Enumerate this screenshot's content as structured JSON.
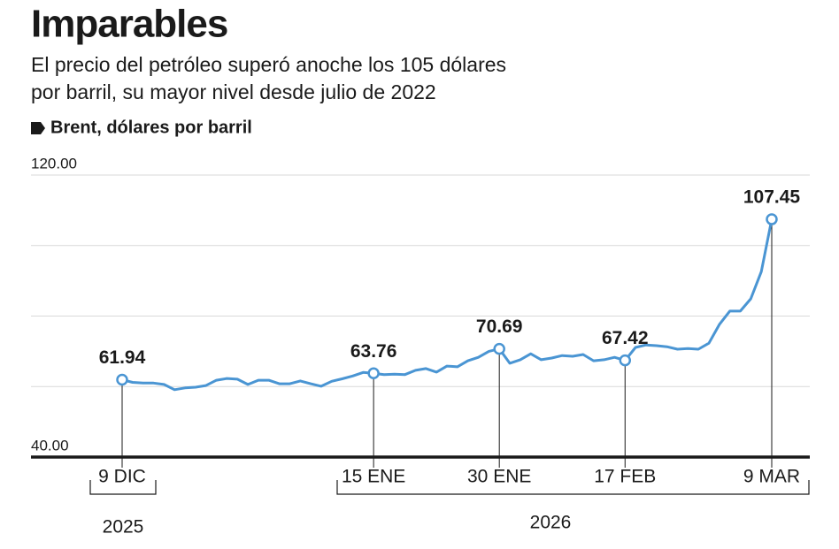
{
  "chart_data": {
    "type": "line",
    "title": "Imparables",
    "subtitle": [
      "El precio del petróleo superó anoche los 105 dólares",
      "por barril, su mayor nivel desde julio de 2022"
    ],
    "categories": [
      "9 DIC",
      null,
      null,
      null,
      null,
      null,
      null,
      null,
      null,
      null,
      null,
      null,
      null,
      null,
      null,
      null,
      null,
      null,
      null,
      null,
      null,
      null,
      null,
      null,
      "15 ENE",
      null,
      null,
      null,
      null,
      null,
      null,
      null,
      null,
      null,
      null,
      null,
      "30 ENE",
      null,
      null,
      null,
      null,
      null,
      null,
      null,
      null,
      null,
      null,
      null,
      "17 FEB",
      null,
      null,
      null,
      null,
      null,
      null,
      null,
      null,
      null,
      null,
      null,
      null,
      null,
      "9 MAR"
    ],
    "periods": [
      "2025",
      "2026"
    ],
    "series": [
      {
        "name": "Brent, dólares por barril",
        "color": "#4a95d3",
        "values": [
          61.94,
          61.2,
          61.0,
          61.0,
          60.6,
          59.1,
          59.6,
          59.8,
          60.3,
          61.8,
          62.3,
          62.1,
          60.6,
          61.8,
          61.8,
          60.8,
          60.8,
          61.6,
          60.8,
          60.1,
          61.5,
          62.2,
          63.0,
          64.0,
          63.76,
          63.4,
          63.5,
          63.4,
          64.6,
          65.1,
          64.1,
          65.8,
          65.6,
          67.3,
          68.3,
          70.0,
          70.69,
          66.6,
          67.6,
          69.3,
          67.6,
          68.1,
          68.8,
          68.6,
          69.1,
          67.3,
          67.6,
          68.3,
          67.42,
          71.1,
          71.8,
          71.6,
          71.3,
          70.6,
          70.8,
          70.6,
          72.3,
          77.6,
          81.4,
          81.4,
          84.9,
          92.6,
          107.45
        ]
      }
    ],
    "ylim": [
      40,
      120
    ],
    "yticks": [
      {
        "value": 40,
        "label": "40.00"
      },
      {
        "value": 60,
        "label": null
      },
      {
        "value": 80,
        "label": null
      },
      {
        "value": 100,
        "label": null
      },
      {
        "value": 120,
        "label": "120.00"
      }
    ],
    "grid": true
  }
}
